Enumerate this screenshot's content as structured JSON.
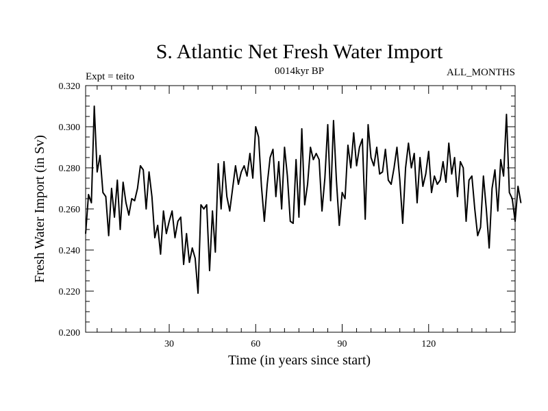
{
  "chart_data": {
    "type": "line",
    "title": "S. Atlantic Net Fresh Water Import",
    "subtitle_left": "Expt = teito",
    "subtitle_center": "0014kyr BP",
    "subtitle_right": "ALL_MONTHS",
    "xlabel": "Time (in years since start)",
    "ylabel": "Fresh Water Import (in Sv)",
    "xlim": [
      1,
      150
    ],
    "ylim": [
      0.2,
      0.32
    ],
    "x_ticks": [
      30,
      60,
      90,
      120
    ],
    "x_tick_labels": [
      "30",
      "60",
      "90",
      "120"
    ],
    "y_ticks": [
      0.2,
      0.22,
      0.24,
      0.26,
      0.28,
      0.3,
      0.32
    ],
    "y_tick_labels": [
      "0.200",
      "0.220",
      "0.240",
      "0.260",
      "0.280",
      "0.300",
      "0.320"
    ],
    "series": [
      {
        "name": "Fresh Water Import",
        "x_start": 1,
        "x_step": 1,
        "values": [
          0.248,
          0.267,
          0.263,
          0.31,
          0.278,
          0.286,
          0.268,
          0.266,
          0.247,
          0.27,
          0.256,
          0.274,
          0.25,
          0.273,
          0.263,
          0.257,
          0.265,
          0.264,
          0.27,
          0.281,
          0.279,
          0.26,
          0.278,
          0.266,
          0.246,
          0.252,
          0.238,
          0.259,
          0.248,
          0.254,
          0.259,
          0.246,
          0.254,
          0.256,
          0.233,
          0.248,
          0.234,
          0.241,
          0.236,
          0.219,
          0.262,
          0.26,
          0.262,
          0.23,
          0.259,
          0.239,
          0.282,
          0.26,
          0.283,
          0.266,
          0.259,
          0.27,
          0.281,
          0.272,
          0.278,
          0.281,
          0.276,
          0.287,
          0.275,
          0.3,
          0.295,
          0.271,
          0.254,
          0.272,
          0.285,
          0.289,
          0.266,
          0.283,
          0.26,
          0.29,
          0.276,
          0.254,
          0.253,
          0.284,
          0.256,
          0.299,
          0.262,
          0.272,
          0.29,
          0.284,
          0.287,
          0.284,
          0.259,
          0.275,
          0.301,
          0.264,
          0.303,
          0.274,
          0.252,
          0.268,
          0.265,
          0.291,
          0.28,
          0.297,
          0.281,
          0.29,
          0.294,
          0.255,
          0.301,
          0.285,
          0.281,
          0.29,
          0.277,
          0.278,
          0.289,
          0.274,
          0.272,
          0.28,
          0.29,
          0.274,
          0.253,
          0.28,
          0.292,
          0.28,
          0.287,
          0.263,
          0.285,
          0.271,
          0.277,
          0.288,
          0.268,
          0.276,
          0.272,
          0.274,
          0.283,
          0.273,
          0.292,
          0.277,
          0.285,
          0.266,
          0.283,
          0.28,
          0.254,
          0.274,
          0.276,
          0.26,
          0.247,
          0.251,
          0.276,
          0.26,
          0.241,
          0.27,
          0.279,
          0.259,
          0.284,
          0.276,
          0.306,
          0.268,
          0.265,
          0.254,
          0.271,
          0.263
        ]
      }
    ]
  }
}
